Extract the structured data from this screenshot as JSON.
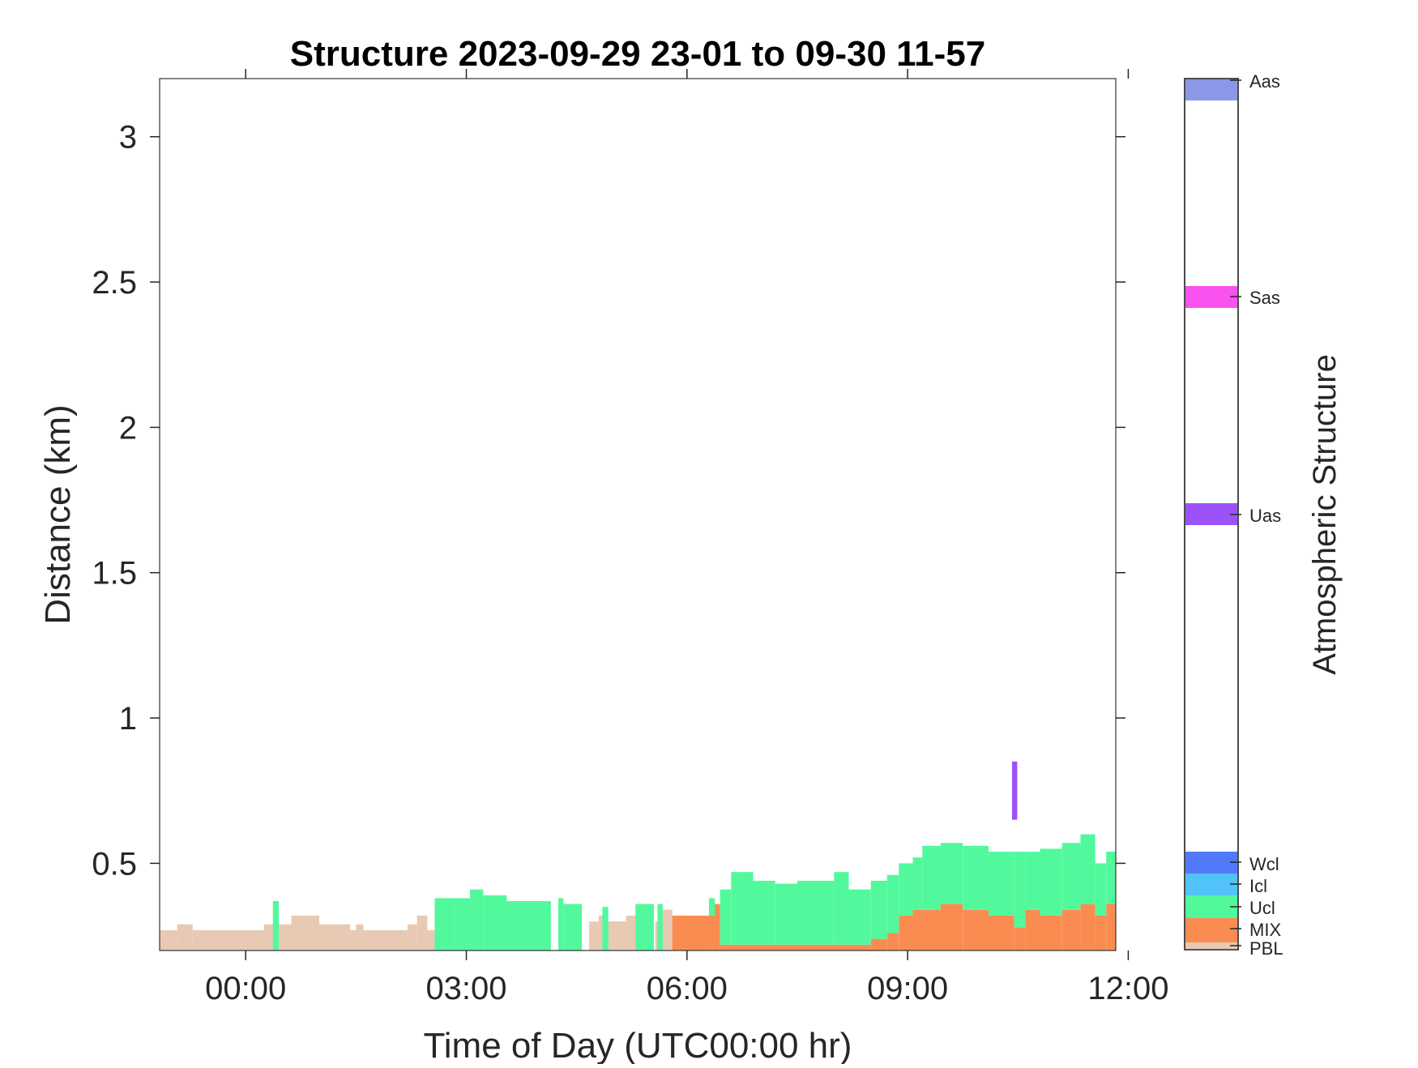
{
  "chart_data": {
    "type": "heatmap",
    "title": "Structure 2023-09-29 23-01 to 09-30 11-57",
    "xlabel": "Time of Day (UTC00:00 hr)",
    "ylabel": "Distance (km)",
    "colorbar_label": "Atmospheric Structure",
    "xlim_hours": [
      -1.17,
      11.83
    ],
    "ylim_km": [
      0.2,
      3.2
    ],
    "x_ticks": [
      {
        "value": 0,
        "label": "00:00"
      },
      {
        "value": 3,
        "label": "03:00"
      },
      {
        "value": 6,
        "label": "06:00"
      },
      {
        "value": 9,
        "label": "09:00"
      },
      {
        "value": 12,
        "label": "12:00"
      }
    ],
    "y_ticks": [
      {
        "value": 0.5,
        "label": "0.5"
      },
      {
        "value": 1,
        "label": "1"
      },
      {
        "value": 1.5,
        "label": "1.5"
      },
      {
        "value": 2,
        "label": "2"
      },
      {
        "value": 2.5,
        "label": "2.5"
      },
      {
        "value": 3,
        "label": "3"
      }
    ],
    "categories": [
      {
        "label": "PBL",
        "color": "#e8c9b3"
      },
      {
        "label": "MIX",
        "color": "#fa8c52"
      },
      {
        "label": "Ucl",
        "color": "#52f99c"
      },
      {
        "label": "Icl",
        "color": "#52c3f9"
      },
      {
        "label": "Wcl",
        "color": "#5279f9"
      },
      {
        "label": "Uas",
        "color": "#9c52f9"
      },
      {
        "label": "Sas",
        "color": "#f952ee"
      },
      {
        "label": "Aas",
        "color": "#8c97e8"
      }
    ],
    "series": [
      {
        "name": "PBL",
        "values": [
          [
            -1.17,
            -0.93,
            0.2,
            0.27
          ],
          [
            -0.93,
            -0.72,
            0.2,
            0.29
          ],
          [
            -0.72,
            0.25,
            0.2,
            0.27
          ],
          [
            0.25,
            0.62,
            0.2,
            0.29
          ],
          [
            0.62,
            1.0,
            0.2,
            0.32
          ],
          [
            1.0,
            1.42,
            0.2,
            0.29
          ],
          [
            1.42,
            1.5,
            0.2,
            0.27
          ],
          [
            1.5,
            1.6,
            0.2,
            0.29
          ],
          [
            1.6,
            2.2,
            0.2,
            0.27
          ],
          [
            2.2,
            2.33,
            0.2,
            0.29
          ],
          [
            2.33,
            2.47,
            0.2,
            0.32
          ],
          [
            2.47,
            2.57,
            0.2,
            0.27
          ],
          [
            4.67,
            4.8,
            0.2,
            0.3
          ],
          [
            4.8,
            4.88,
            0.2,
            0.32
          ],
          [
            4.88,
            5.17,
            0.2,
            0.3
          ],
          [
            5.17,
            5.4,
            0.2,
            0.32
          ],
          [
            5.57,
            5.67,
            0.2,
            0.3
          ],
          [
            5.67,
            5.8,
            0.2,
            0.34
          ]
        ]
      },
      {
        "name": "MIX",
        "values": [
          [
            5.8,
            6.3,
            0.2,
            0.32
          ],
          [
            6.3,
            6.45,
            0.2,
            0.36
          ],
          [
            6.45,
            8.5,
            0.2,
            0.22
          ],
          [
            8.5,
            8.72,
            0.2,
            0.24
          ],
          [
            8.72,
            8.88,
            0.2,
            0.26
          ],
          [
            8.88,
            9.07,
            0.2,
            0.32
          ],
          [
            9.07,
            9.45,
            0.2,
            0.34
          ],
          [
            9.45,
            9.75,
            0.2,
            0.36
          ],
          [
            9.75,
            10.1,
            0.2,
            0.34
          ],
          [
            10.1,
            10.45,
            0.2,
            0.32
          ],
          [
            10.45,
            10.6,
            0.2,
            0.28
          ],
          [
            10.6,
            10.8,
            0.2,
            0.34
          ],
          [
            10.8,
            11.1,
            0.2,
            0.32
          ],
          [
            11.1,
            11.35,
            0.2,
            0.34
          ],
          [
            11.35,
            11.55,
            0.2,
            0.36
          ],
          [
            11.55,
            11.7,
            0.2,
            0.32
          ],
          [
            11.7,
            11.83,
            0.2,
            0.36
          ]
        ]
      },
      {
        "name": "Ucl",
        "values": [
          [
            0.37,
            0.45,
            0.2,
            0.37
          ],
          [
            2.57,
            2.85,
            0.2,
            0.38
          ],
          [
            2.85,
            3.05,
            0.2,
            0.38
          ],
          [
            3.05,
            3.23,
            0.2,
            0.41
          ],
          [
            3.23,
            3.55,
            0.2,
            0.39
          ],
          [
            3.55,
            4.15,
            0.2,
            0.37
          ],
          [
            4.25,
            4.32,
            0.2,
            0.38
          ],
          [
            4.32,
            4.57,
            0.2,
            0.36
          ],
          [
            4.85,
            4.93,
            0.2,
            0.35
          ],
          [
            5.3,
            5.55,
            0.2,
            0.36
          ],
          [
            5.6,
            5.67,
            0.2,
            0.36
          ],
          [
            6.3,
            6.38,
            0.32,
            0.38
          ],
          [
            6.45,
            6.6,
            0.22,
            0.41
          ],
          [
            6.6,
            6.9,
            0.22,
            0.47
          ],
          [
            6.9,
            7.2,
            0.22,
            0.44
          ],
          [
            7.2,
            7.5,
            0.22,
            0.43
          ],
          [
            7.5,
            8.0,
            0.22,
            0.44
          ],
          [
            8.0,
            8.2,
            0.22,
            0.47
          ],
          [
            8.2,
            8.5,
            0.22,
            0.41
          ],
          [
            8.5,
            8.72,
            0.24,
            0.44
          ],
          [
            8.72,
            8.88,
            0.26,
            0.46
          ],
          [
            8.88,
            9.07,
            0.32,
            0.5
          ],
          [
            9.07,
            9.2,
            0.34,
            0.52
          ],
          [
            9.2,
            9.45,
            0.34,
            0.56
          ],
          [
            9.45,
            9.75,
            0.36,
            0.57
          ],
          [
            9.75,
            10.1,
            0.34,
            0.56
          ],
          [
            10.1,
            10.45,
            0.32,
            0.54
          ],
          [
            10.45,
            10.6,
            0.28,
            0.54
          ],
          [
            10.6,
            10.8,
            0.34,
            0.54
          ],
          [
            10.8,
            11.1,
            0.32,
            0.55
          ],
          [
            11.1,
            11.35,
            0.34,
            0.57
          ],
          [
            11.35,
            11.55,
            0.36,
            0.6
          ],
          [
            11.55,
            11.7,
            0.32,
            0.5
          ],
          [
            11.7,
            11.83,
            0.36,
            0.54
          ]
        ]
      },
      {
        "name": "Uas",
        "values": [
          [
            10.42,
            10.49,
            0.65,
            0.85
          ]
        ]
      }
    ]
  }
}
